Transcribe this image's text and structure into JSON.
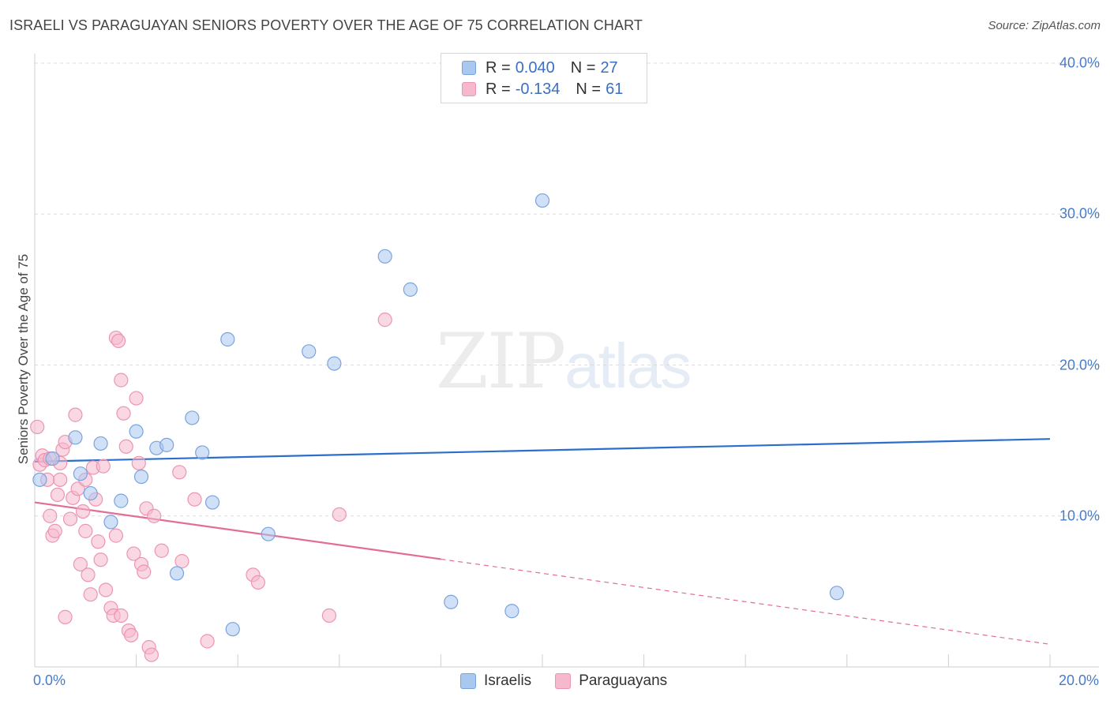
{
  "title": "ISRAELI VS PARAGUAYAN SENIORS POVERTY OVER THE AGE OF 75 CORRELATION CHART",
  "source": "Source: ZipAtlas.com",
  "watermark": {
    "zip": "ZIP",
    "atlas": "atlas"
  },
  "legend": {
    "rows": [
      {
        "r_label": "R = ",
        "r_value": "0.040",
        "n_label": "N = ",
        "n_value": "27"
      },
      {
        "r_label": "R = ",
        "r_value": "-0.134",
        "n_label": "N = ",
        "n_value": "61"
      }
    ]
  },
  "colors": {
    "israelis_fill": "#a9c8f0",
    "israelis_stroke": "#7aa3de",
    "israelis_line": "#2c6fca",
    "paraguayans_fill": "#f6b8cc",
    "paraguayans_stroke": "#ec95b1",
    "paraguayans_line": "#e26d97",
    "grid": "#dcdcdc",
    "tick_label": "#4a7bc8"
  },
  "chart_data": {
    "type": "scatter",
    "title": "ISRAELI VS PARAGUAYAN SENIORS POVERTY OVER THE AGE OF 75 CORRELATION CHART",
    "xlabel": "",
    "ylabel": "Seniors Poverty Over the Age of 75",
    "xlim": [
      0,
      20
    ],
    "ylim": [
      0,
      40
    ],
    "y_ticks": [
      "10.0%",
      "20.0%",
      "30.0%",
      "40.0%"
    ],
    "y_tick_values": [
      10,
      20,
      30,
      40
    ],
    "x_tick_labels": [
      "0.0%",
      "20.0%"
    ],
    "x_tick_values": [
      0,
      20
    ],
    "grid": true,
    "legend_position": "top-center",
    "series": [
      {
        "name": "Israelis",
        "r": 0.04,
        "n": 27,
        "trend": {
          "x0": 0,
          "y0": 13.6,
          "x1": 20,
          "y1": 15.1,
          "solid_until": 20
        },
        "points": [
          [
            0.1,
            12.4
          ],
          [
            0.35,
            13.8
          ],
          [
            0.8,
            15.2
          ],
          [
            0.9,
            12.8
          ],
          [
            1.1,
            11.5
          ],
          [
            1.3,
            14.8
          ],
          [
            1.5,
            9.6
          ],
          [
            1.7,
            11.0
          ],
          [
            2.0,
            15.6
          ],
          [
            2.1,
            12.6
          ],
          [
            2.4,
            14.5
          ],
          [
            2.6,
            14.7
          ],
          [
            2.8,
            6.2
          ],
          [
            3.1,
            16.5
          ],
          [
            3.3,
            14.2
          ],
          [
            3.5,
            10.9
          ],
          [
            3.8,
            21.7
          ],
          [
            3.9,
            2.5
          ],
          [
            4.6,
            8.8
          ],
          [
            5.4,
            20.9
          ],
          [
            5.9,
            20.1
          ],
          [
            6.9,
            27.2
          ],
          [
            7.4,
            25.0
          ],
          [
            8.2,
            4.3
          ],
          [
            9.4,
            3.7
          ],
          [
            10.0,
            30.9
          ],
          [
            15.8,
            4.9
          ]
        ]
      },
      {
        "name": "Paraguayans",
        "r": -0.134,
        "n": 61,
        "trend": {
          "x0": 0,
          "y0": 10.9,
          "x1": 20,
          "y1": 1.5,
          "solid_until": 8.0
        },
        "points": [
          [
            0.05,
            15.9
          ],
          [
            0.1,
            13.4
          ],
          [
            0.15,
            14.0
          ],
          [
            0.2,
            13.7
          ],
          [
            0.25,
            12.4
          ],
          [
            0.3,
            10.0
          ],
          [
            0.35,
            8.7
          ],
          [
            0.4,
            9.0
          ],
          [
            0.45,
            11.4
          ],
          [
            0.5,
            12.4
          ],
          [
            0.55,
            14.4
          ],
          [
            0.6,
            14.9
          ],
          [
            0.5,
            13.5
          ],
          [
            0.6,
            3.3
          ],
          [
            0.7,
            9.8
          ],
          [
            0.75,
            11.2
          ],
          [
            0.8,
            16.7
          ],
          [
            0.85,
            11.8
          ],
          [
            0.9,
            6.8
          ],
          [
            0.95,
            10.3
          ],
          [
            1.0,
            12.4
          ],
          [
            1.05,
            6.1
          ],
          [
            1.1,
            4.8
          ],
          [
            1.15,
            13.2
          ],
          [
            1.2,
            11.1
          ],
          [
            1.25,
            8.3
          ],
          [
            1.3,
            7.1
          ],
          [
            1.35,
            13.3
          ],
          [
            1.4,
            5.1
          ],
          [
            1.5,
            3.9
          ],
          [
            1.55,
            3.4
          ],
          [
            1.6,
            8.7
          ],
          [
            1.7,
            3.4
          ],
          [
            1.8,
            14.6
          ],
          [
            1.6,
            21.8
          ],
          [
            1.65,
            21.6
          ],
          [
            1.7,
            19.0
          ],
          [
            1.75,
            16.8
          ],
          [
            1.85,
            2.4
          ],
          [
            1.9,
            2.1
          ],
          [
            1.95,
            7.5
          ],
          [
            2.0,
            17.8
          ],
          [
            2.05,
            13.5
          ],
          [
            2.1,
            6.8
          ],
          [
            2.15,
            6.3
          ],
          [
            2.2,
            10.5
          ],
          [
            2.25,
            1.3
          ],
          [
            2.3,
            0.8
          ],
          [
            2.35,
            10.0
          ],
          [
            2.5,
            7.7
          ],
          [
            2.85,
            12.9
          ],
          [
            3.15,
            11.1
          ],
          [
            3.4,
            1.7
          ],
          [
            4.3,
            6.1
          ],
          [
            4.4,
            5.6
          ],
          [
            5.8,
            3.4
          ],
          [
            6.0,
            10.1
          ],
          [
            6.9,
            23.0
          ],
          [
            1.0,
            9.0
          ],
          [
            0.3,
            13.8
          ],
          [
            2.9,
            7.0
          ]
        ]
      }
    ]
  }
}
